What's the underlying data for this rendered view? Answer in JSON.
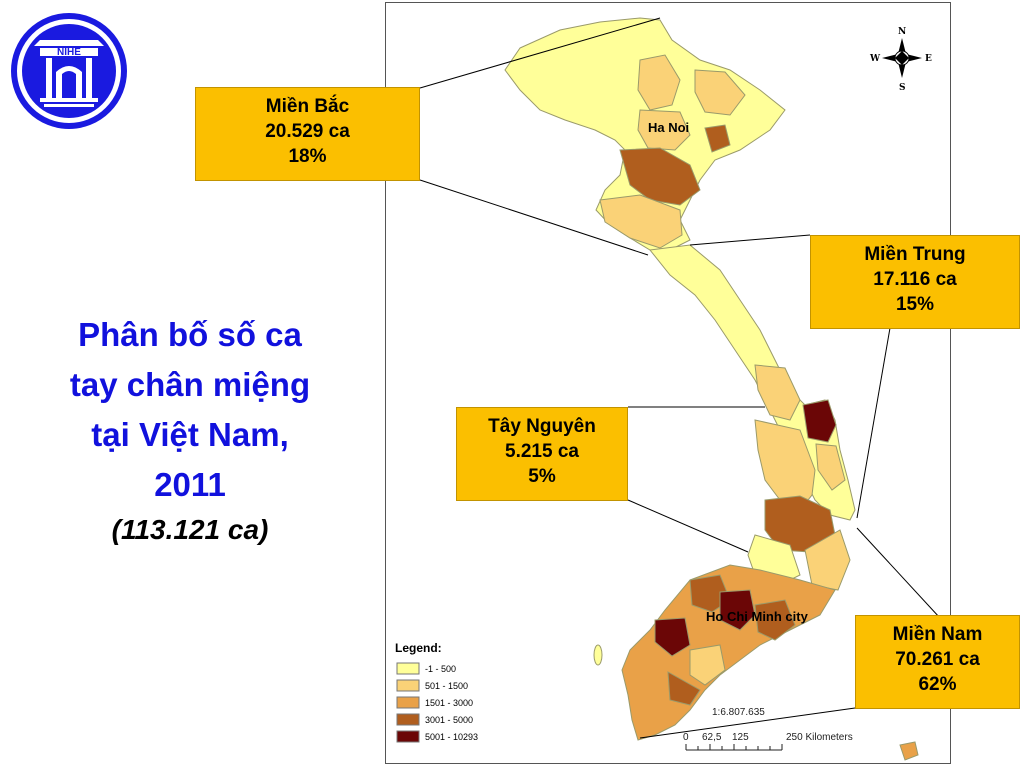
{
  "logo": {
    "text": "NIHE"
  },
  "title": {
    "lines": [
      "Phân bố số ca",
      "tay chân miệng",
      "tại Việt Nam,",
      "2011"
    ],
    "subtitle": "(113.121 ca)"
  },
  "callouts": {
    "mien_bac": {
      "name": "Miền Bắc",
      "cases": "20.529 ca",
      "percent": "18%"
    },
    "mien_trung": {
      "name": "Miền Trung",
      "cases": "17.116 ca",
      "percent": "15%"
    },
    "tay_nguyen": {
      "name": "Tây Nguyên",
      "cases": "5.215 ca",
      "percent": "5%"
    },
    "mien_nam": {
      "name": "Miền Nam",
      "cases": "70.261 ca",
      "percent": "62%"
    }
  },
  "map": {
    "cities": {
      "hanoi": "Ha Noi",
      "hcmc": "Ho Chi Minh city"
    },
    "legend": {
      "title": "Legend:",
      "classes": [
        {
          "label": "-1 - 500",
          "color": "#ffff99"
        },
        {
          "label": "501 - 1500",
          "color": "#fad277"
        },
        {
          "label": "1501 - 3000",
          "color": "#e9a148"
        },
        {
          "label": "3001 - 5000",
          "color": "#b05e1e"
        },
        {
          "label": "5001 - 10293",
          "color": "#6b0606"
        }
      ]
    },
    "scale": {
      "ratio": "1:6.807.635",
      "ticks": [
        "0",
        "62,5",
        "125",
        "250 Kilometers"
      ]
    },
    "compass": {
      "n": "N",
      "s": "S",
      "e": "E",
      "w": "W"
    }
  }
}
